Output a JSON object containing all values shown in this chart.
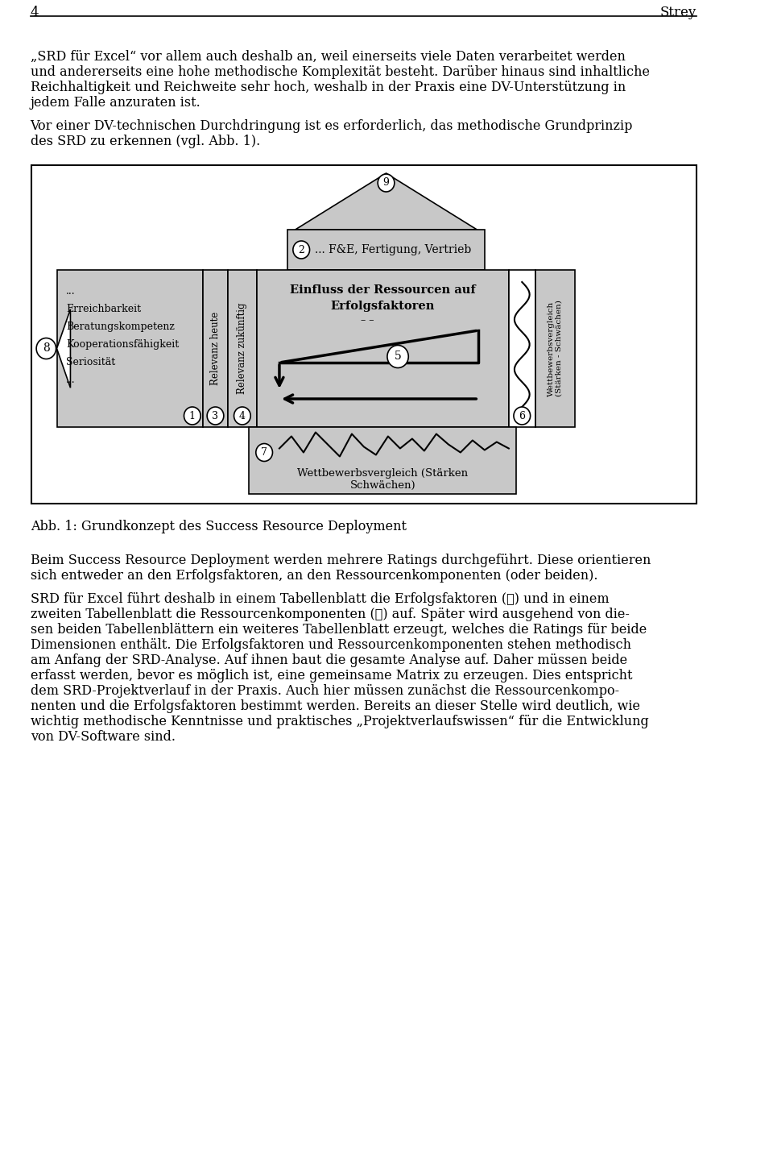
{
  "page_number": "4",
  "page_header_right": "Strey",
  "para1": "„SRD für Excel“ vor allem auch deshalb an, weil einerseits viele Daten verarbeitet werden und andererseits eine hohe methodische Komplexität besteht. Darüber hinaus sind inhaltliche Reichhaltigkeit und Reichweite sehr hoch, weshalb in der Praxis eine DV-Unterstützung in jedem Falle anzuraten ist.",
  "para2": "Vor einer DV-technischen Durchdringung ist es erforderlich, das methodische Grundprinzip des SRD zu erkennen (vgl. Abb. 1).",
  "fig_caption": "Abb. 1: Grundkonzept des Success Resource Deployment",
  "para3": "Beim Success Resource Deployment werden mehrere Ratings durchgeführt. Diese orientieren sich entweder an den Erfolgsfaktoren, an den Ressourcenkomponenten (oder beiden).",
  "para4": "SRD für Excel führt deshalb in einem Tabellenblatt die Erfolgsfaktoren (①) und in einem zweiten Tabellenblatt die Ressourcenkomponenten (②) auf. Später wird ausgehend von diesen beiden Tabellenblättern ein weiteres Tabellenblatt erzeugt, welches die Ratings für beide Dimensionen enthält. Die Erfolgsfaktoren und Ressourcenkomponenten stehen methodisch am Anfang der SRD-Analyse. Auf ihnen baut die gesamte Analyse auf. Daher müssen beide erfasst werden, bevor es möglich ist, eine gemeinsame Matrix zu erzeugen. Dies entspricht dem SRD-Projektverlauf in der Praxis. Auch hier müssen zunächst die Ressourcenkomponenten und die Erfolgsfaktoren bestimmt werden. Bereits an dieser Stelle wird deutlich, wie wichtig methodische Kenntnisse und praktisches „Projektverlaufswissen“ für die Entwicklung von DV-Software sind.",
  "bg_color": "#ffffff",
  "text_color": "#000000",
  "gray_fill": "#c8c8c8",
  "gray_fill_light": "#d8d8d8",
  "font_size_body": 11.5,
  "font_size_small": 9.5,
  "font_size_header": 12
}
